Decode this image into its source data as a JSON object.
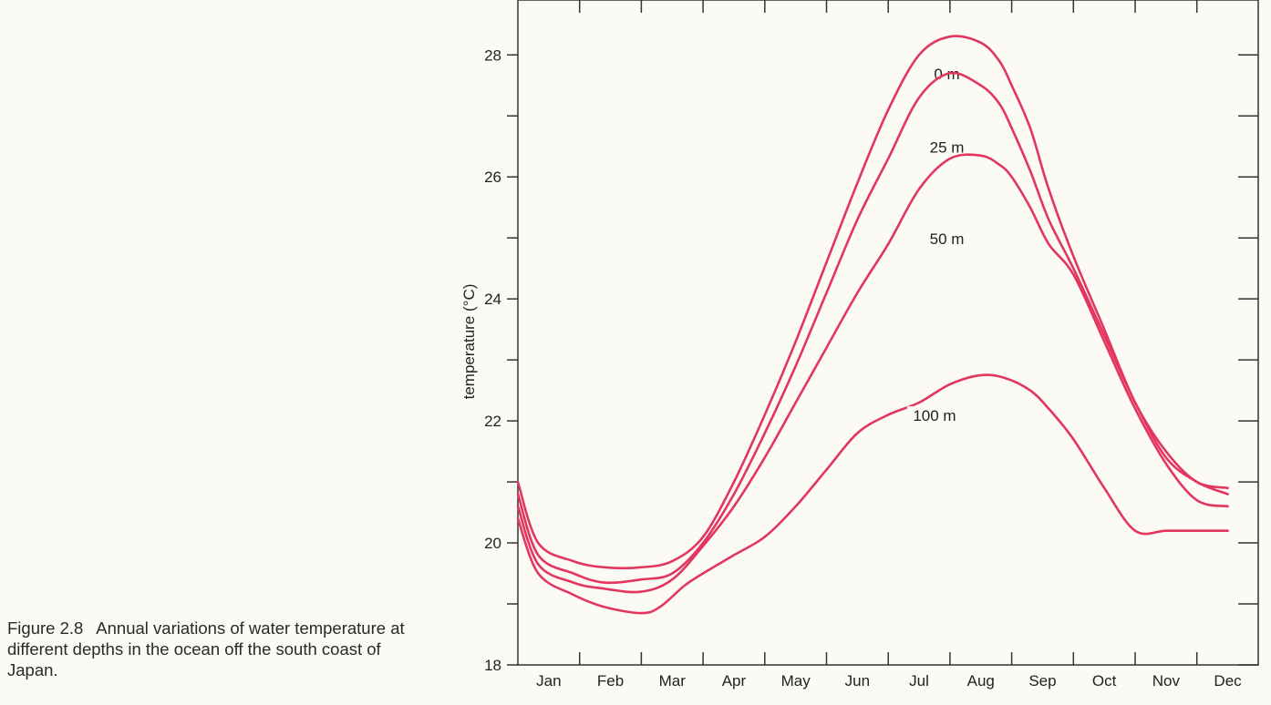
{
  "caption": {
    "label": "Figure 2.8",
    "text": "Annual variations of water temperature at different depths in the ocean off the south coast of Japan."
  },
  "chart_data": {
    "type": "line",
    "title": "",
    "ylabel": "temperature (°C)",
    "xlabel": "",
    "categories": [
      "Jan",
      "Feb",
      "Mar",
      "Apr",
      "May",
      "Jun",
      "Jul",
      "Aug",
      "Sep",
      "Oct",
      "Nov",
      "Dec"
    ],
    "ylim": [
      18,
      28.9
    ],
    "yticks": [
      20,
      22,
      24,
      26,
      28
    ],
    "line_color": "#e2365f",
    "grid": false,
    "series": [
      {
        "name": "0 m",
        "x": [
          0,
          0.33,
          0.9,
          1.4,
          2.0,
          2.5,
          3.0,
          3.5,
          4.0,
          4.5,
          5.0,
          5.5,
          6.0,
          6.5,
          7.0,
          7.5,
          7.8,
          8.0,
          8.3,
          8.6,
          9.0,
          9.5,
          10.0,
          10.5,
          11.0,
          11.5
        ],
        "y": [
          21.0,
          20.0,
          19.7,
          19.6,
          19.6,
          19.7,
          20.1,
          21.0,
          22.1,
          23.3,
          24.6,
          25.9,
          27.1,
          28.0,
          28.3,
          28.2,
          27.9,
          27.5,
          26.8,
          25.8,
          24.7,
          23.5,
          22.3,
          21.5,
          21.0,
          20.9
        ]
      },
      {
        "name": "25 m",
        "x": [
          0,
          0.33,
          0.9,
          1.4,
          2.0,
          2.5,
          3.0,
          3.5,
          4.0,
          4.5,
          5.0,
          5.5,
          6.0,
          6.5,
          7.0,
          7.5,
          7.8,
          8.0,
          8.3,
          8.6,
          9.0,
          9.5,
          10.0,
          10.5,
          11.0,
          11.5
        ],
        "y": [
          20.8,
          19.8,
          19.5,
          19.35,
          19.4,
          19.5,
          20.0,
          20.8,
          21.8,
          22.9,
          24.1,
          25.3,
          26.3,
          27.3,
          27.7,
          27.5,
          27.2,
          26.8,
          26.1,
          25.3,
          24.5,
          23.4,
          22.3,
          21.4,
          21.0,
          20.8
        ]
      },
      {
        "name": "50 m",
        "x": [
          0,
          0.33,
          0.9,
          1.4,
          2.0,
          2.5,
          3.0,
          3.5,
          4.0,
          4.5,
          5.0,
          5.5,
          6.0,
          6.5,
          7.0,
          7.5,
          7.8,
          8.0,
          8.3,
          8.6,
          9.0,
          9.5,
          10.0,
          10.5,
          11.0,
          11.5
        ],
        "y": [
          20.6,
          19.65,
          19.35,
          19.25,
          19.2,
          19.4,
          19.95,
          20.6,
          21.4,
          22.3,
          23.2,
          24.1,
          24.9,
          25.8,
          26.3,
          26.35,
          26.2,
          26.0,
          25.5,
          24.9,
          24.4,
          23.3,
          22.2,
          21.3,
          20.7,
          20.6
        ]
      },
      {
        "name": "100 m",
        "x": [
          0,
          0.33,
          0.9,
          1.4,
          2.0,
          2.3,
          2.7,
          3.0,
          3.5,
          4.0,
          4.5,
          5.0,
          5.5,
          6.0,
          6.5,
          7.0,
          7.5,
          7.9,
          8.3,
          8.6,
          9.0,
          9.5,
          10.0,
          10.5,
          11.0,
          11.5
        ],
        "y": [
          20.4,
          19.5,
          19.15,
          18.95,
          18.85,
          18.95,
          19.3,
          19.5,
          19.8,
          20.1,
          20.6,
          21.2,
          21.8,
          22.1,
          22.3,
          22.6,
          22.75,
          22.7,
          22.5,
          22.2,
          21.7,
          20.9,
          20.2,
          20.2,
          20.2,
          20.2
        ]
      }
    ]
  }
}
